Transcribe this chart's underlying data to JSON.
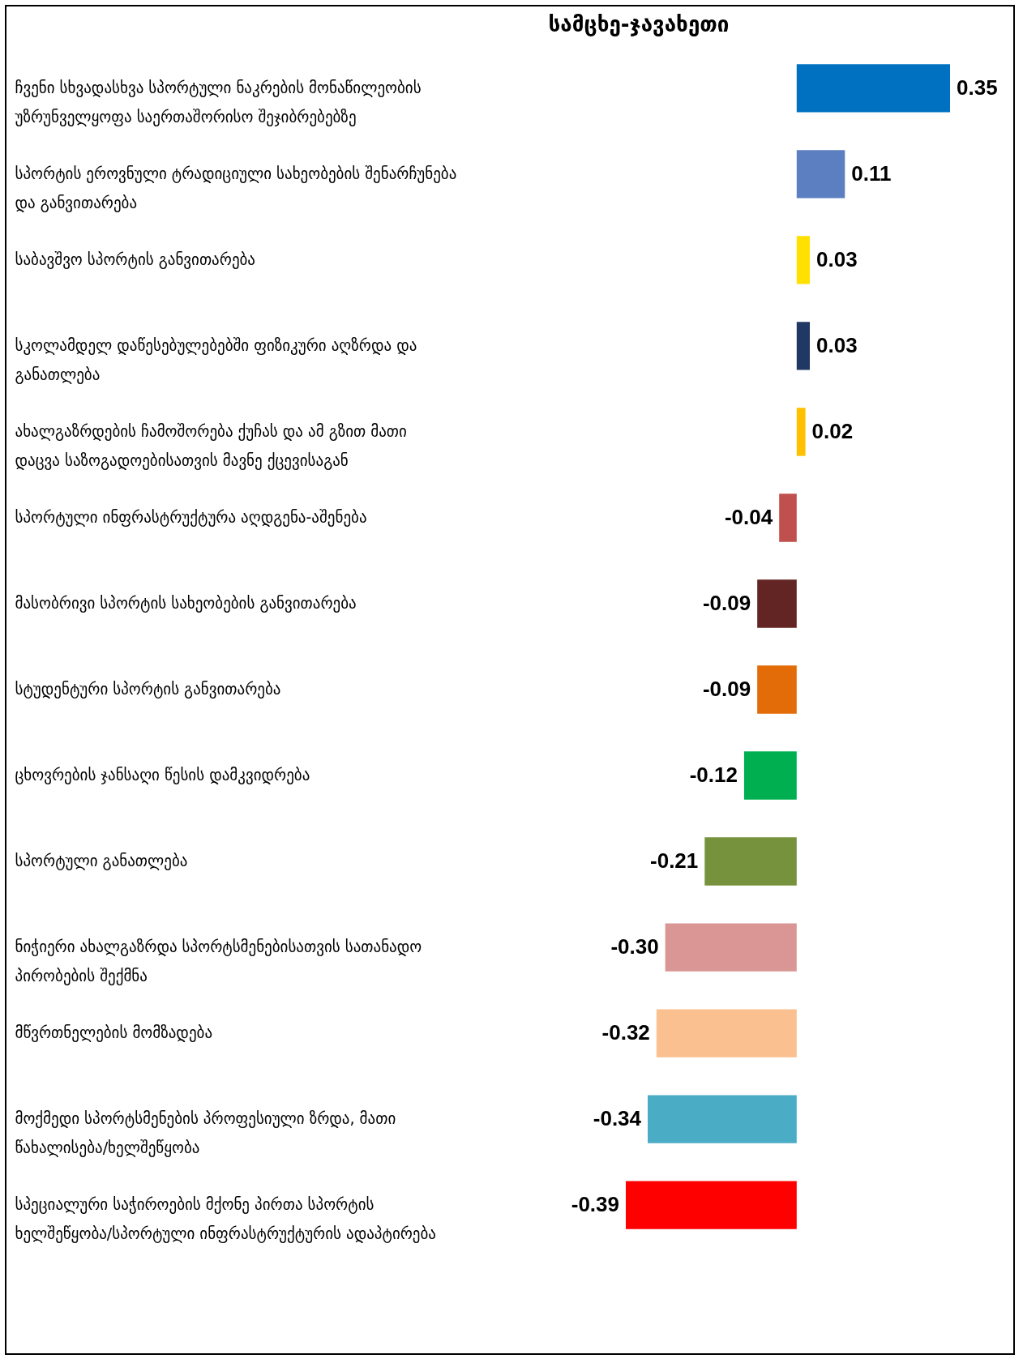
{
  "chart_data": {
    "type": "bar",
    "orientation": "horizontal",
    "title": "სამცხე-ჯავახეთი",
    "data_labels": true,
    "categories": [
      "ჩვენი სხვადასხვა სპორტული ნაკრების მონაწილეობის უზრუნველყოფა საერთაშორისო შეჯიბრებებზე",
      "სპორტის ეროვნული ტრადიციული სახეობების შენარჩუნება და განვითარება",
      "საბავშვო სპორტის განვითარება",
      "სკოლამდელ დაწესებულებებში ფიზიკური აღზრდა და განათლება",
      "ახალგაზრდების ჩამოშორება ქუჩას და ამ გზით მათი დაცვა საზოგადოებისათვის მავნე ქცევისაგან",
      "სპორტული ინფრასტრუქტურა აღდგენა-აშენება",
      "მასობრივი სპორტის სახეობების განვითარება",
      "სტუდენტური სპორტის განვითარება",
      "ცხოვრების ჯანსაღი წესის დამკვიდრება",
      "სპორტული განათლება",
      "ნიჭიერი ახალგაზრდა სპორტსმენებისათვის სათანადო პირობების შექმნა",
      "მწვრთნელების მომზადება",
      "მოქმედი სპორტსმენების  პროფესიული ზრდა, მათი წახალისება/ხელშეწყობა",
      "სპეციალური საჭიროების მქონე პირთა სპორტის ხელშეწყობა/სპორტული ინფრასტრუქტურის ადაპტირება"
    ],
    "values": [
      0.35,
      0.11,
      0.03,
      0.03,
      0.02,
      -0.04,
      -0.09,
      -0.09,
      -0.12,
      -0.21,
      -0.3,
      -0.32,
      -0.34,
      -0.39
    ],
    "value_labels": [
      "0.35",
      "0.11",
      "0.03",
      "0.03",
      "0.02",
      "-0.04",
      "-0.09",
      "-0.09",
      "-0.12",
      "-0.21",
      "-0.30",
      "-0.32",
      "-0.34",
      "-0.39"
    ],
    "colors": [
      "#0070c0",
      "#5b7fc0",
      "#ffe000",
      "#1f3864",
      "#ffc000",
      "#c0504d",
      "#632523",
      "#e36c09",
      "#00b050",
      "#76923c",
      "#d99694",
      "#fac090",
      "#4bacc6",
      "#ff0000"
    ]
  }
}
